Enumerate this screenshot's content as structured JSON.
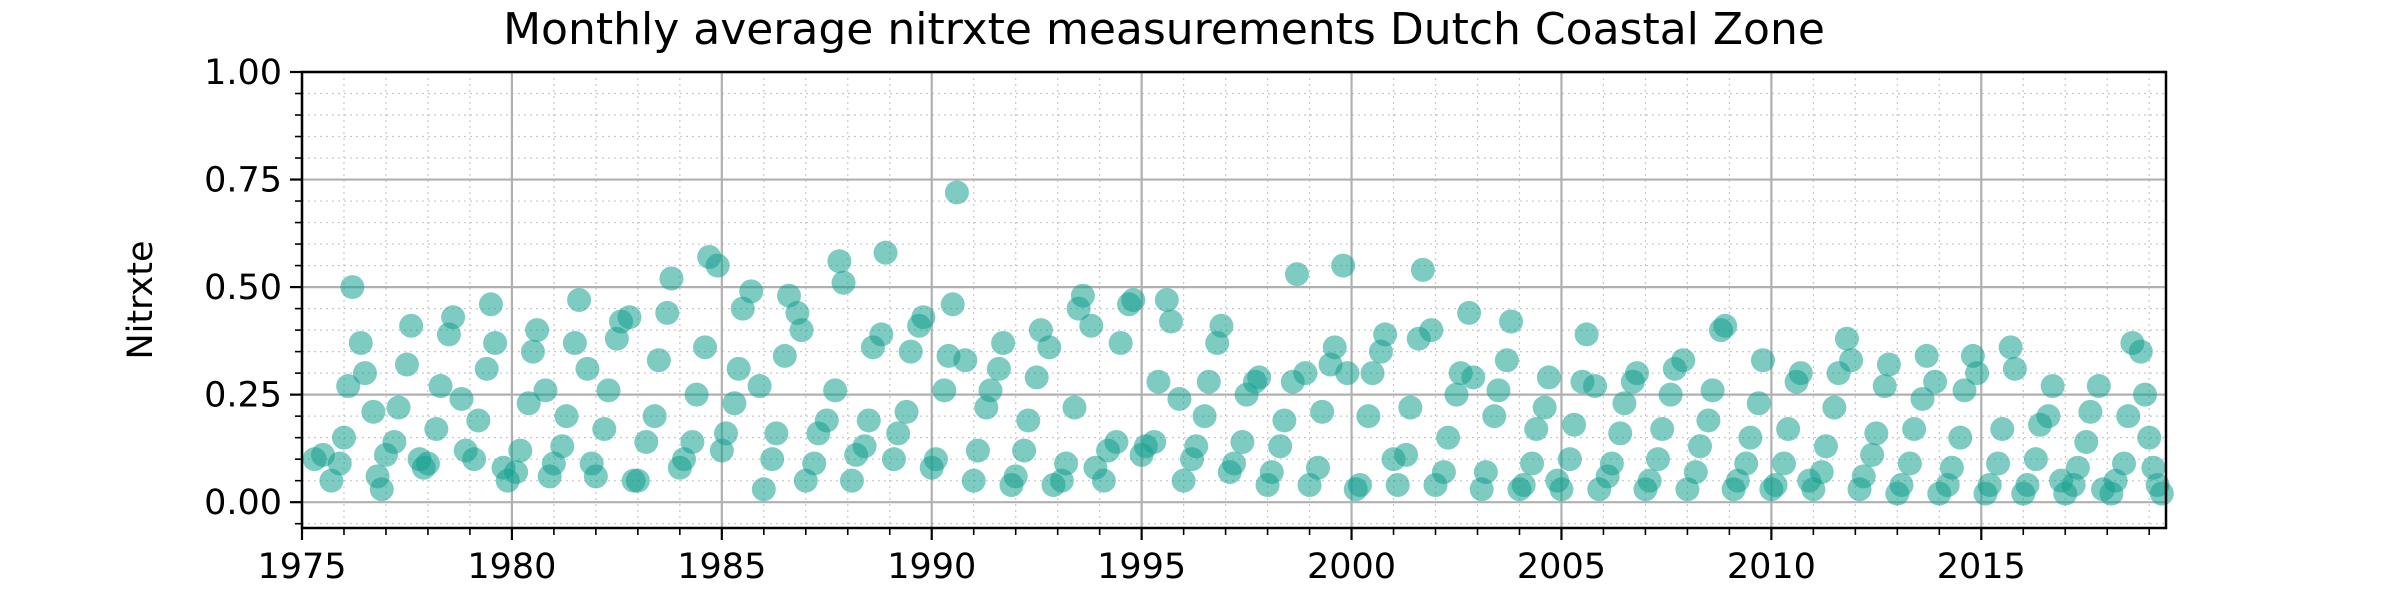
{
  "chart_data": {
    "type": "scatter",
    "title": "Monthly average nitrxte measurements Dutch Coastal Zone",
    "xlabel": "",
    "ylabel": "Nitrxte",
    "xlim": [
      1975,
      2019.4
    ],
    "ylim": [
      -0.06,
      1.0
    ],
    "x_ticks": [
      1975,
      1980,
      1985,
      1990,
      1995,
      2000,
      2005,
      2010,
      2015
    ],
    "x_tick_labels": [
      "1975",
      "1980",
      "1985",
      "1990",
      "1995",
      "2000",
      "2005",
      "2010",
      "2015"
    ],
    "y_ticks": [
      0.0,
      0.25,
      0.5,
      0.75,
      1.0
    ],
    "y_tick_labels": [
      "0.00",
      "0.25",
      "0.50",
      "0.75",
      "1.00"
    ],
    "grid": "major and minor",
    "marker_color": "#14a090",
    "marker_opacity": 0.55,
    "points": [
      [
        1975.3,
        0.1
      ],
      [
        1975.5,
        0.11
      ],
      [
        1975.7,
        0.05
      ],
      [
        1975.9,
        0.09
      ],
      [
        1976.0,
        0.15
      ],
      [
        1976.1,
        0.27
      ],
      [
        1976.2,
        0.5
      ],
      [
        1976.4,
        0.37
      ],
      [
        1976.5,
        0.3
      ],
      [
        1976.7,
        0.21
      ],
      [
        1976.8,
        0.06
      ],
      [
        1976.9,
        0.03
      ],
      [
        1977.0,
        0.11
      ],
      [
        1977.2,
        0.14
      ],
      [
        1977.3,
        0.22
      ],
      [
        1977.5,
        0.32
      ],
      [
        1977.6,
        0.41
      ],
      [
        1977.8,
        0.1
      ],
      [
        1977.9,
        0.08
      ],
      [
        1978.0,
        0.09
      ],
      [
        1978.2,
        0.17
      ],
      [
        1978.3,
        0.27
      ],
      [
        1978.5,
        0.39
      ],
      [
        1978.6,
        0.43
      ],
      [
        1978.8,
        0.24
      ],
      [
        1978.9,
        0.12
      ],
      [
        1979.1,
        0.1
      ],
      [
        1979.2,
        0.19
      ],
      [
        1979.4,
        0.31
      ],
      [
        1979.5,
        0.46
      ],
      [
        1979.6,
        0.37
      ],
      [
        1979.8,
        0.08
      ],
      [
        1979.9,
        0.05
      ],
      [
        1980.1,
        0.07
      ],
      [
        1980.2,
        0.12
      ],
      [
        1980.4,
        0.23
      ],
      [
        1980.5,
        0.35
      ],
      [
        1980.6,
        0.4
      ],
      [
        1980.8,
        0.26
      ],
      [
        1980.9,
        0.06
      ],
      [
        1981.0,
        0.09
      ],
      [
        1981.2,
        0.13
      ],
      [
        1981.3,
        0.2
      ],
      [
        1981.5,
        0.37
      ],
      [
        1981.6,
        0.47
      ],
      [
        1981.8,
        0.31
      ],
      [
        1981.9,
        0.09
      ],
      [
        1982.0,
        0.06
      ],
      [
        1982.2,
        0.17
      ],
      [
        1982.3,
        0.26
      ],
      [
        1982.5,
        0.38
      ],
      [
        1982.6,
        0.42
      ],
      [
        1982.8,
        0.43
      ],
      [
        1982.9,
        0.05
      ],
      [
        1983.0,
        0.05
      ],
      [
        1983.2,
        0.14
      ],
      [
        1983.4,
        0.2
      ],
      [
        1983.5,
        0.33
      ],
      [
        1983.7,
        0.44
      ],
      [
        1983.8,
        0.52
      ],
      [
        1984.0,
        0.08
      ],
      [
        1984.1,
        0.1
      ],
      [
        1984.3,
        0.14
      ],
      [
        1984.4,
        0.25
      ],
      [
        1984.6,
        0.36
      ],
      [
        1984.7,
        0.57
      ],
      [
        1984.9,
        0.55
      ],
      [
        1985.0,
        0.12
      ],
      [
        1985.1,
        0.16
      ],
      [
        1985.3,
        0.23
      ],
      [
        1985.4,
        0.31
      ],
      [
        1985.5,
        0.45
      ],
      [
        1985.7,
        0.49
      ],
      [
        1985.9,
        0.27
      ],
      [
        1986.0,
        0.03
      ],
      [
        1986.2,
        0.1
      ],
      [
        1986.3,
        0.16
      ],
      [
        1986.5,
        0.34
      ],
      [
        1986.6,
        0.48
      ],
      [
        1986.8,
        0.44
      ],
      [
        1986.9,
        0.4
      ],
      [
        1987.0,
        0.05
      ],
      [
        1987.2,
        0.09
      ],
      [
        1987.3,
        0.16
      ],
      [
        1987.5,
        0.19
      ],
      [
        1987.7,
        0.26
      ],
      [
        1987.8,
        0.56
      ],
      [
        1987.9,
        0.51
      ],
      [
        1988.1,
        0.05
      ],
      [
        1988.2,
        0.11
      ],
      [
        1988.4,
        0.13
      ],
      [
        1988.5,
        0.19
      ],
      [
        1988.6,
        0.36
      ],
      [
        1988.8,
        0.39
      ],
      [
        1988.9,
        0.58
      ],
      [
        1989.1,
        0.1
      ],
      [
        1989.2,
        0.16
      ],
      [
        1989.4,
        0.21
      ],
      [
        1989.5,
        0.35
      ],
      [
        1989.7,
        0.41
      ],
      [
        1989.8,
        0.43
      ],
      [
        1990.0,
        0.08
      ],
      [
        1990.1,
        0.1
      ],
      [
        1990.3,
        0.26
      ],
      [
        1990.4,
        0.34
      ],
      [
        1990.5,
        0.46
      ],
      [
        1990.6,
        0.72
      ],
      [
        1990.8,
        0.33
      ],
      [
        1991.0,
        0.05
      ],
      [
        1991.1,
        0.12
      ],
      [
        1991.3,
        0.22
      ],
      [
        1991.4,
        0.26
      ],
      [
        1991.6,
        0.31
      ],
      [
        1991.7,
        0.37
      ],
      [
        1991.9,
        0.04
      ],
      [
        1992.0,
        0.06
      ],
      [
        1992.2,
        0.12
      ],
      [
        1992.3,
        0.19
      ],
      [
        1992.5,
        0.29
      ],
      [
        1992.6,
        0.4
      ],
      [
        1992.8,
        0.36
      ],
      [
        1992.9,
        0.04
      ],
      [
        1993.1,
        0.05
      ],
      [
        1993.2,
        0.09
      ],
      [
        1993.4,
        0.22
      ],
      [
        1993.5,
        0.45
      ],
      [
        1993.6,
        0.48
      ],
      [
        1993.8,
        0.41
      ],
      [
        1993.9,
        0.08
      ],
      [
        1994.1,
        0.05
      ],
      [
        1994.2,
        0.12
      ],
      [
        1994.4,
        0.14
      ],
      [
        1994.5,
        0.37
      ],
      [
        1994.7,
        0.46
      ],
      [
        1994.8,
        0.47
      ],
      [
        1995.0,
        0.11
      ],
      [
        1995.1,
        0.13
      ],
      [
        1995.3,
        0.14
      ],
      [
        1995.4,
        0.28
      ],
      [
        1995.6,
        0.47
      ],
      [
        1995.7,
        0.42
      ],
      [
        1995.9,
        0.24
      ],
      [
        1996.0,
        0.05
      ],
      [
        1996.2,
        0.1
      ],
      [
        1996.3,
        0.13
      ],
      [
        1996.5,
        0.2
      ],
      [
        1996.6,
        0.28
      ],
      [
        1996.8,
        0.37
      ],
      [
        1996.9,
        0.41
      ],
      [
        1997.1,
        0.07
      ],
      [
        1997.2,
        0.09
      ],
      [
        1997.4,
        0.14
      ],
      [
        1997.5,
        0.25
      ],
      [
        1997.7,
        0.28
      ],
      [
        1997.8,
        0.29
      ],
      [
        1998.0,
        0.04
      ],
      [
        1998.1,
        0.07
      ],
      [
        1998.3,
        0.13
      ],
      [
        1998.4,
        0.19
      ],
      [
        1998.6,
        0.28
      ],
      [
        1998.7,
        0.53
      ],
      [
        1998.9,
        0.3
      ],
      [
        1999.0,
        0.04
      ],
      [
        1999.2,
        0.08
      ],
      [
        1999.3,
        0.21
      ],
      [
        1999.5,
        0.32
      ],
      [
        1999.6,
        0.36
      ],
      [
        1999.8,
        0.55
      ],
      [
        1999.9,
        0.3
      ],
      [
        2000.1,
        0.03
      ],
      [
        2000.2,
        0.04
      ],
      [
        2000.4,
        0.2
      ],
      [
        2000.5,
        0.3
      ],
      [
        2000.7,
        0.35
      ],
      [
        2000.8,
        0.39
      ],
      [
        2001.0,
        0.1
      ],
      [
        2001.1,
        0.04
      ],
      [
        2001.3,
        0.11
      ],
      [
        2001.4,
        0.22
      ],
      [
        2001.6,
        0.38
      ],
      [
        2001.7,
        0.54
      ],
      [
        2001.9,
        0.4
      ],
      [
        2002.0,
        0.04
      ],
      [
        2002.2,
        0.07
      ],
      [
        2002.3,
        0.15
      ],
      [
        2002.5,
        0.25
      ],
      [
        2002.6,
        0.3
      ],
      [
        2002.8,
        0.44
      ],
      [
        2002.9,
        0.29
      ],
      [
        2003.1,
        0.03
      ],
      [
        2003.2,
        0.07
      ],
      [
        2003.4,
        0.2
      ],
      [
        2003.5,
        0.26
      ],
      [
        2003.7,
        0.33
      ],
      [
        2003.8,
        0.42
      ],
      [
        2004.0,
        0.03
      ],
      [
        2004.1,
        0.04
      ],
      [
        2004.3,
        0.09
      ],
      [
        2004.4,
        0.17
      ],
      [
        2004.6,
        0.22
      ],
      [
        2004.7,
        0.29
      ],
      [
        2004.9,
        0.05
      ],
      [
        2005.0,
        0.03
      ],
      [
        2005.2,
        0.1
      ],
      [
        2005.3,
        0.18
      ],
      [
        2005.5,
        0.28
      ],
      [
        2005.6,
        0.39
      ],
      [
        2005.8,
        0.27
      ],
      [
        2005.9,
        0.03
      ],
      [
        2006.1,
        0.06
      ],
      [
        2006.2,
        0.09
      ],
      [
        2006.4,
        0.16
      ],
      [
        2006.5,
        0.23
      ],
      [
        2006.7,
        0.28
      ],
      [
        2006.8,
        0.3
      ],
      [
        2007.0,
        0.03
      ],
      [
        2007.1,
        0.05
      ],
      [
        2007.3,
        0.1
      ],
      [
        2007.4,
        0.17
      ],
      [
        2007.6,
        0.25
      ],
      [
        2007.7,
        0.31
      ],
      [
        2007.9,
        0.33
      ],
      [
        2008.0,
        0.03
      ],
      [
        2008.2,
        0.07
      ],
      [
        2008.3,
        0.13
      ],
      [
        2008.5,
        0.19
      ],
      [
        2008.6,
        0.26
      ],
      [
        2008.8,
        0.4
      ],
      [
        2008.9,
        0.41
      ],
      [
        2009.1,
        0.03
      ],
      [
        2009.2,
        0.05
      ],
      [
        2009.4,
        0.09
      ],
      [
        2009.5,
        0.15
      ],
      [
        2009.7,
        0.23
      ],
      [
        2009.8,
        0.33
      ],
      [
        2010.0,
        0.03
      ],
      [
        2010.1,
        0.04
      ],
      [
        2010.3,
        0.09
      ],
      [
        2010.4,
        0.17
      ],
      [
        2010.6,
        0.28
      ],
      [
        2010.7,
        0.3
      ],
      [
        2010.9,
        0.05
      ],
      [
        2011.0,
        0.03
      ],
      [
        2011.2,
        0.07
      ],
      [
        2011.3,
        0.13
      ],
      [
        2011.5,
        0.22
      ],
      [
        2011.6,
        0.3
      ],
      [
        2011.8,
        0.38
      ],
      [
        2011.9,
        0.33
      ],
      [
        2012.1,
        0.03
      ],
      [
        2012.2,
        0.06
      ],
      [
        2012.4,
        0.11
      ],
      [
        2012.5,
        0.16
      ],
      [
        2012.7,
        0.27
      ],
      [
        2012.8,
        0.32
      ],
      [
        2013.0,
        0.02
      ],
      [
        2013.1,
        0.04
      ],
      [
        2013.3,
        0.09
      ],
      [
        2013.4,
        0.17
      ],
      [
        2013.6,
        0.24
      ],
      [
        2013.7,
        0.34
      ],
      [
        2013.9,
        0.28
      ],
      [
        2014.0,
        0.02
      ],
      [
        2014.2,
        0.04
      ],
      [
        2014.3,
        0.08
      ],
      [
        2014.5,
        0.15
      ],
      [
        2014.6,
        0.26
      ],
      [
        2014.8,
        0.34
      ],
      [
        2014.9,
        0.3
      ],
      [
        2015.1,
        0.02
      ],
      [
        2015.2,
        0.04
      ],
      [
        2015.4,
        0.09
      ],
      [
        2015.5,
        0.17
      ],
      [
        2015.7,
        0.36
      ],
      [
        2015.8,
        0.31
      ],
      [
        2016.0,
        0.02
      ],
      [
        2016.1,
        0.04
      ],
      [
        2016.3,
        0.1
      ],
      [
        2016.4,
        0.18
      ],
      [
        2016.6,
        0.2
      ],
      [
        2016.7,
        0.27
      ],
      [
        2016.9,
        0.05
      ],
      [
        2017.0,
        0.02
      ],
      [
        2017.2,
        0.04
      ],
      [
        2017.3,
        0.08
      ],
      [
        2017.5,
        0.14
      ],
      [
        2017.6,
        0.21
      ],
      [
        2017.8,
        0.27
      ],
      [
        2017.9,
        0.03
      ],
      [
        2018.1,
        0.02
      ],
      [
        2018.2,
        0.05
      ],
      [
        2018.4,
        0.09
      ],
      [
        2018.5,
        0.2
      ],
      [
        2018.6,
        0.37
      ],
      [
        2018.8,
        0.35
      ],
      [
        2018.9,
        0.25
      ],
      [
        2019.0,
        0.15
      ],
      [
        2019.1,
        0.08
      ],
      [
        2019.2,
        0.04
      ],
      [
        2019.3,
        0.02
      ]
    ]
  }
}
